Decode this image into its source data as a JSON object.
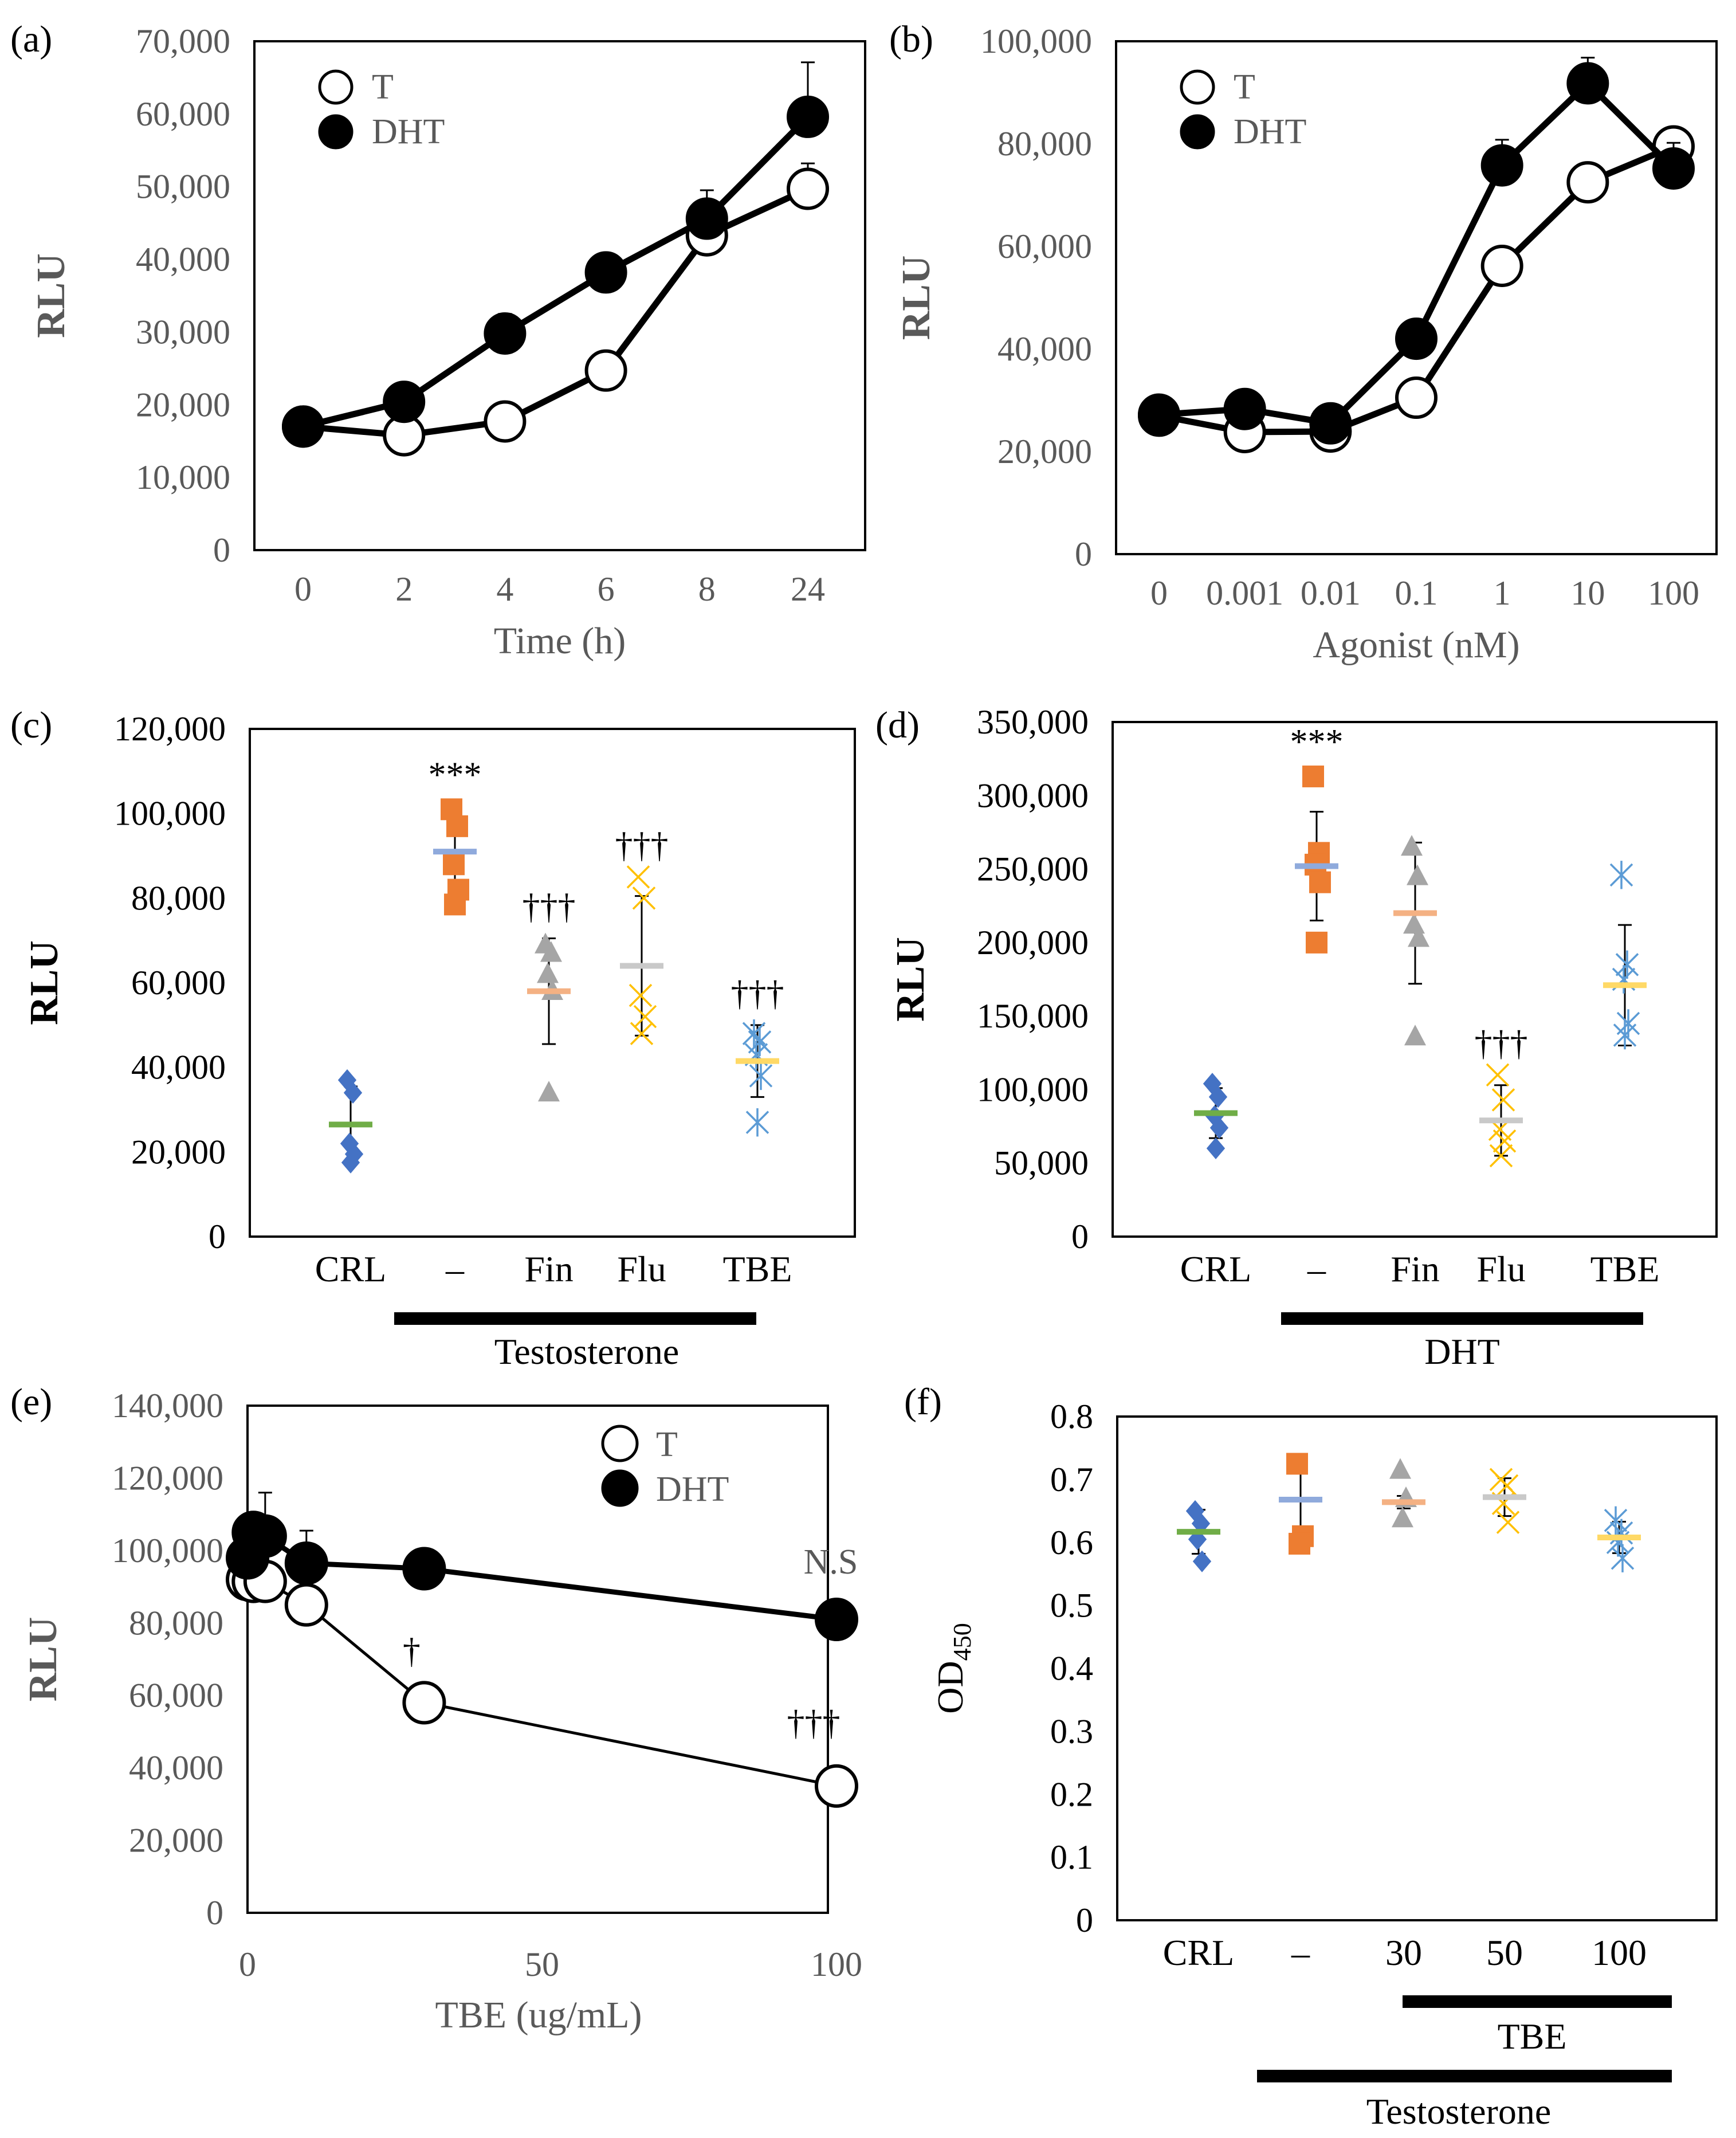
{
  "chart_data": [
    {
      "panel": "(a)",
      "type": "line",
      "categories": [
        "0",
        "2",
        "4",
        "6",
        "8",
        "24"
      ],
      "series": [
        {
          "name": "T",
          "marker": "open-circle",
          "values": [
            17000,
            15800,
            17700,
            24700,
            43300,
            49700
          ],
          "errors": [
            0,
            0,
            0,
            0,
            4500,
            3500
          ]
        },
        {
          "name": "DHT",
          "marker": "filled-circle",
          "values": [
            17000,
            20400,
            29800,
            38200,
            45600,
            59600
          ],
          "errors": [
            0,
            0,
            2700,
            1500,
            3900,
            7500
          ]
        }
      ],
      "xlabel": "Time (h)",
      "ylabel": "RLU",
      "ylim": [
        0,
        70000
      ],
      "yticks": [
        "0",
        "10,000",
        "20,000",
        "30,000",
        "40,000",
        "50,000",
        "60,000",
        "70,000"
      ]
    },
    {
      "panel": "(b)",
      "type": "line",
      "categories": [
        "0",
        "0.001",
        "0.01",
        "0.1",
        "1",
        "10",
        "100"
      ],
      "series": [
        {
          "name": "T",
          "marker": "open-circle",
          "values": [
            27000,
            23800,
            23900,
            30500,
            56200,
            72500,
            79500
          ],
          "errors": [
            0,
            0,
            0,
            0,
            3000,
            3500,
            3500
          ]
        },
        {
          "name": "DHT",
          "marker": "filled-circle",
          "values": [
            27200,
            28300,
            25500,
            42000,
            75800,
            91800,
            75200
          ],
          "errors": [
            0,
            0,
            0,
            0,
            5000,
            5000,
            5000
          ]
        }
      ],
      "xlabel": "Agonist (nM)",
      "ylabel": "RLU",
      "ylim": [
        0,
        100000
      ],
      "yticks": [
        "0",
        "20,000",
        "40,000",
        "60,000",
        "80,000",
        "100,000"
      ]
    },
    {
      "panel": "(c)",
      "type": "scatter",
      "categories": [
        "CRL",
        "–",
        "Fin",
        "Flu",
        "TBE"
      ],
      "groups": [
        {
          "name": "CRL",
          "marker": "diamond",
          "color": "#4472C4",
          "mean_color": "#70AD47",
          "points": [
            37000,
            34000,
            22000,
            19500,
            17500
          ],
          "mean": 26500,
          "error": 9000,
          "sig": ""
        },
        {
          "name": "–",
          "marker": "square",
          "color": "#ED7D31",
          "mean_color": "#8FAADC",
          "points": [
            101000,
            97000,
            88000,
            82000,
            78500
          ],
          "mean": 91000,
          "error": 8000,
          "sig": "***"
        },
        {
          "name": "Fin",
          "marker": "triangle",
          "color": "#A5A5A5",
          "mean_color": "#F4B183",
          "points": [
            69000,
            67000,
            62000,
            58000,
            34000
          ],
          "mean": 58000,
          "error": 12500,
          "sig": "†††"
        },
        {
          "name": "Flu",
          "marker": "x",
          "color": "#FFC000",
          "mean_color": "#C9C9C9",
          "points": [
            85000,
            80000,
            57000,
            52000,
            48000
          ],
          "mean": 64000,
          "error": 16500,
          "sig": "†††"
        },
        {
          "name": "TBE",
          "marker": "asterisk",
          "color": "#5B9BD5",
          "mean_color": "#FFD966",
          "points": [
            48000,
            46000,
            43000,
            38000,
            27000
          ],
          "mean": 41500,
          "error": 8500,
          "sig": "†††"
        }
      ],
      "group_bar_label": "Testosterone",
      "ylabel": "RLU",
      "ylim": [
        0,
        120000
      ],
      "yticks": [
        "0",
        "20,000",
        "40,000",
        "60,000",
        "80,000",
        "100,000",
        "120,000"
      ]
    },
    {
      "panel": "(d)",
      "type": "scatter",
      "categories": [
        "CRL",
        "–",
        "Fin",
        "Flu",
        "TBE"
      ],
      "groups": [
        {
          "name": "CRL",
          "marker": "diamond",
          "color": "#4472C4",
          "mean_color": "#70AD47",
          "points": [
            104000,
            95000,
            82000,
            74000,
            60000
          ],
          "mean": 84000,
          "error": 17000,
          "sig": ""
        },
        {
          "name": "–",
          "marker": "square",
          "color": "#ED7D31",
          "mean_color": "#8FAADC",
          "points": [
            313000,
            261000,
            253000,
            241000,
            200000
          ],
          "mean": 252000,
          "error": 37000,
          "sig": "***"
        },
        {
          "name": "Fin",
          "marker": "triangle",
          "color": "#A5A5A5",
          "mean_color": "#F4B183",
          "points": [
            265000,
            245000,
            212000,
            203000,
            136000
          ],
          "mean": 220000,
          "error": 48000,
          "sig": ""
        },
        {
          "name": "Flu",
          "marker": "x",
          "color": "#FFC000",
          "mean_color": "#C9C9C9",
          "points": [
            110000,
            93000,
            73000,
            65000,
            55000
          ],
          "mean": 79000,
          "error": 24000,
          "sig": "†††"
        },
        {
          "name": "TBE",
          "marker": "asterisk",
          "color": "#5B9BD5",
          "mean_color": "#FFD966",
          "points": [
            246000,
            185000,
            175000,
            145000,
            137000
          ],
          "mean": 171000,
          "error": 41000,
          "sig": ""
        }
      ],
      "group_bar_label": "DHT",
      "ylabel": "RLU",
      "ylim": [
        0,
        350000
      ],
      "yticks": [
        "0",
        "50,000",
        "100,000",
        "150,000",
        "200,000",
        "250,000",
        "300,000",
        "350,000"
      ]
    },
    {
      "panel": "(e)",
      "type": "line",
      "series": [
        {
          "name": "T",
          "marker": "open-circle",
          "x": [
            0,
            1,
            3,
            10,
            30,
            100
          ],
          "values": [
            92000,
            91500,
            91500,
            85000,
            58000,
            35000
          ],
          "errors": [
            0,
            0,
            7000,
            0,
            0,
            0
          ]
        },
        {
          "name": "DHT",
          "marker": "filled-circle",
          "x": [
            0,
            1,
            3,
            10,
            30,
            100
          ],
          "values": [
            98000,
            105000,
            104000,
            96500,
            95000,
            81000
          ],
          "errors": [
            0,
            0,
            12000,
            9000,
            0,
            0
          ]
        }
      ],
      "annotations": [
        {
          "text": "†",
          "x": 30
        },
        {
          "text": "†††",
          "x": 100
        },
        {
          "text": "N.S",
          "x": 100
        }
      ],
      "xlabel": "TBE (ug/mL)",
      "ylabel": "RLU",
      "xlim": [
        0,
        100
      ],
      "xticks": [
        "0",
        "50",
        "100"
      ],
      "ylim": [
        0,
        140000
      ],
      "yticks": [
        "0",
        "20,000",
        "40,000",
        "60,000",
        "80,000",
        "100,000",
        "120,000",
        "140,000"
      ]
    },
    {
      "panel": "(f)",
      "type": "scatter",
      "categories": [
        "CRL",
        "–",
        "30",
        "50",
        "100"
      ],
      "groups": [
        {
          "name": "CRL",
          "marker": "diamond",
          "color": "#4472C4",
          "mean_color": "#70AD47",
          "points": [
            0.65,
            0.63,
            0.605,
            0.57
          ],
          "mean": 0.617,
          "error": 0.035
        },
        {
          "name": "–",
          "marker": "square",
          "color": "#ED7D31",
          "mean_color": "#8FAADC",
          "points": [
            0.725,
            0.61,
            0.598
          ],
          "mean": 0.668,
          "error": 0.06
        },
        {
          "name": "30",
          "marker": "triangle",
          "color": "#A5A5A5",
          "mean_color": "#F4B183",
          "points": [
            0.715,
            0.67,
            0.638
          ],
          "mean": 0.664,
          "error": 0.01
        },
        {
          "name": "50",
          "marker": "x",
          "color": "#FFC000",
          "mean_color": "#C9C9C9",
          "points": [
            0.7,
            0.69,
            0.662,
            0.632
          ],
          "mean": 0.672,
          "error": 0.03
        },
        {
          "name": "100",
          "marker": "asterisk",
          "color": "#5B9BD5",
          "mean_color": "#FFD966",
          "points": [
            0.635,
            0.615,
            0.6,
            0.575
          ],
          "mean": 0.608,
          "error": 0.025
        }
      ],
      "group_bars": [
        {
          "label": "TBE"
        },
        {
          "label": "Testosterone"
        }
      ],
      "ylabel": "OD",
      "ylabel_sub": "450",
      "ylim": [
        0,
        0.8
      ],
      "yticks": [
        "0",
        "0.1",
        "0.2",
        "0.3",
        "0.4",
        "0.5",
        "0.6",
        "0.7",
        "0.8"
      ]
    }
  ]
}
